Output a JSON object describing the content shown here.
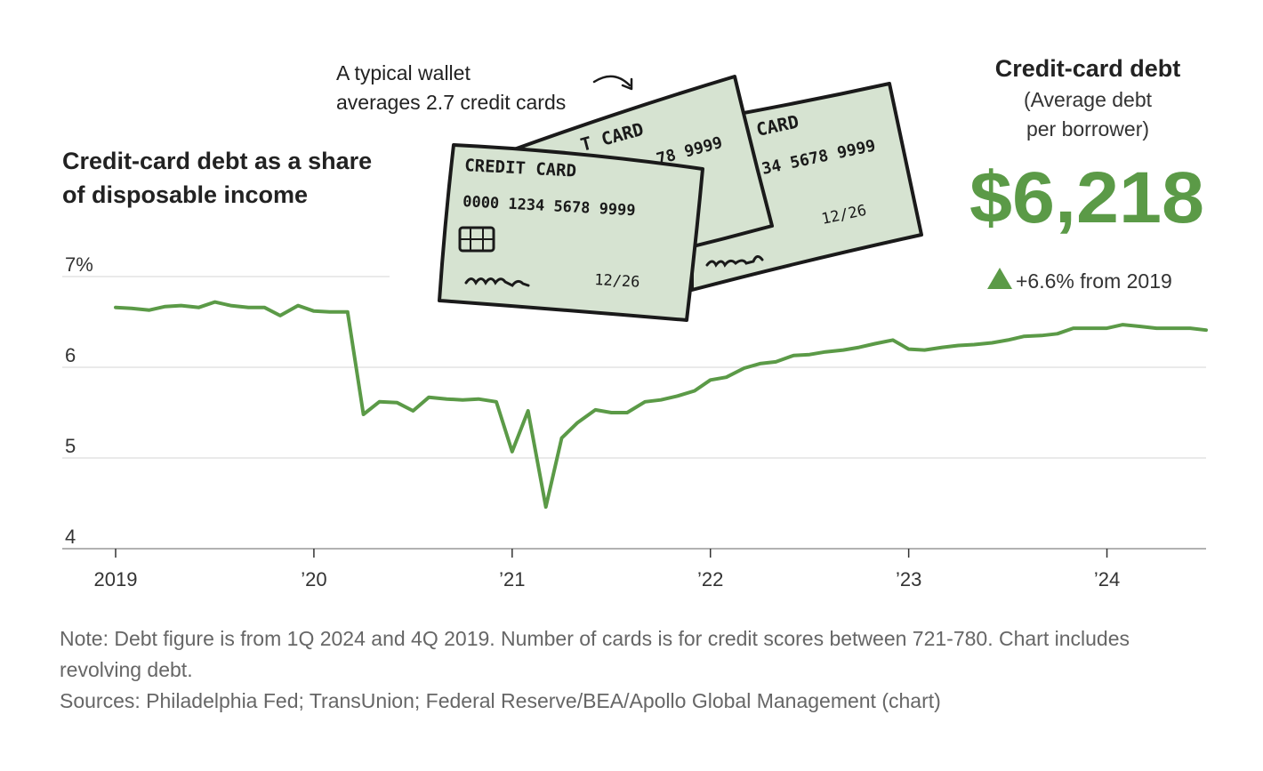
{
  "chart_data": {
    "type": "line",
    "title": "Credit-card debt as a share of disposable income",
    "ylim": [
      4,
      7
    ],
    "y_ticks": [
      "7%",
      "6",
      "5",
      "4"
    ],
    "y_tick_values": [
      7,
      6,
      5,
      4
    ],
    "x_ticks": [
      "2019",
      "’20",
      "’21",
      "’22",
      "’23",
      "’24"
    ],
    "x_tick_values": [
      2019,
      2020,
      2021,
      2022,
      2023,
      2024
    ],
    "xlim": [
      2019,
      2024.5
    ],
    "series_color": "#5b9a47",
    "series": [
      {
        "x": [
          2019.0,
          2019.08,
          2019.17,
          2019.25,
          2019.33,
          2019.42,
          2019.5,
          2019.58,
          2019.67,
          2019.75,
          2019.83,
          2019.92,
          2020.0,
          2020.08,
          2020.17,
          2020.25,
          2020.33,
          2020.42,
          2020.5,
          2020.58,
          2020.67,
          2020.75,
          2020.83,
          2020.92,
          2021.0,
          2021.08,
          2021.17,
          2021.25,
          2021.33,
          2021.42,
          2021.5,
          2021.58,
          2021.67,
          2021.75,
          2021.83,
          2021.92,
          2022.0,
          2022.08,
          2022.17,
          2022.25,
          2022.33,
          2022.42,
          2022.5,
          2022.58,
          2022.67,
          2022.75,
          2022.83,
          2022.92,
          2023.0,
          2023.08,
          2023.17,
          2023.25,
          2023.33,
          2023.42,
          2023.5,
          2023.58,
          2023.67,
          2023.75,
          2023.83,
          2023.92,
          2024.0,
          2024.08,
          2024.17,
          2024.25,
          2024.33,
          2024.42,
          2024.5
        ],
        "values": [
          6.66,
          6.65,
          6.63,
          6.67,
          6.68,
          6.66,
          6.72,
          6.68,
          6.66,
          6.66,
          6.57,
          6.68,
          6.62,
          6.61,
          6.61,
          5.48,
          5.62,
          5.61,
          5.52,
          5.67,
          5.65,
          5.64,
          5.65,
          5.62,
          5.07,
          5.52,
          4.46,
          5.22,
          5.39,
          5.53,
          5.5,
          5.5,
          5.62,
          5.64,
          5.68,
          5.74,
          5.86,
          5.89,
          5.99,
          6.04,
          6.06,
          6.13,
          6.14,
          6.17,
          6.19,
          6.22,
          6.26,
          6.3,
          6.2,
          6.19,
          6.22,
          6.24,
          6.25,
          6.27,
          6.3,
          6.34,
          6.35,
          6.37,
          6.43,
          6.43,
          6.43,
          6.47,
          6.45,
          6.43,
          6.43,
          6.43,
          6.41
        ]
      }
    ]
  },
  "wallet_note": [
    "A typical wallet",
    "averages 2.7 credit cards"
  ],
  "cards": {
    "title": "CREDIT CARD",
    "partial_title": "T CARD",
    "edge_title": "CARD",
    "number": "0000  1234  5678  9999",
    "partial_number": "78  9999",
    "back_number": "34  5678  9999",
    "expiry": "12/26",
    "fill_color": "#d6e3d1",
    "stroke_color": "#1a1a1a"
  },
  "stat": {
    "title": "Credit-card debt",
    "subtitle_lines": [
      "(Average debt",
      "per borrower)"
    ],
    "value": "$6,218",
    "change": "+6.6% from 2019",
    "accent_color": "#5b9a47"
  },
  "footnote": {
    "note": "Note: Debt figure is from 1Q 2024 and 4Q 2019. Number of cards is for credit scores between 721-780. Chart includes revolving debt.",
    "sources": "Sources: Philadelphia Fed; TransUnion; Federal Reserve/BEA/Apollo Global Management (chart)"
  }
}
